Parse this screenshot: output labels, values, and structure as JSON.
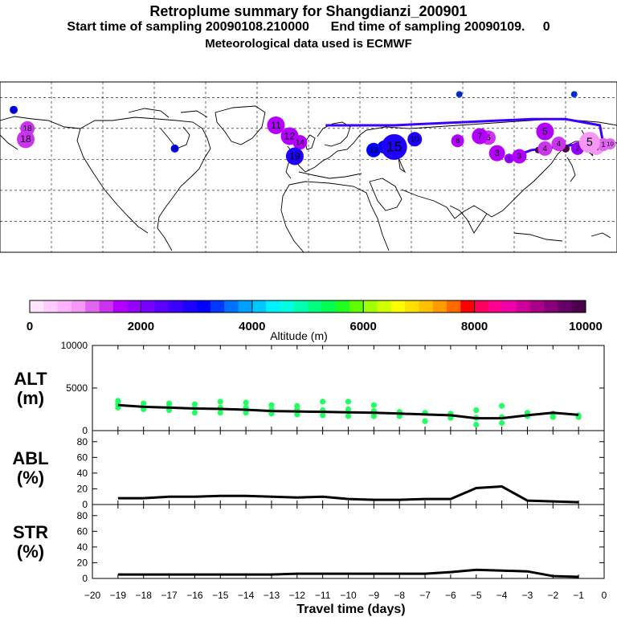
{
  "header": {
    "title": "Retroplume summary for Shangdianzi_200901",
    "subtitle_start": "Start time of sampling 20090108.210000",
    "subtitle_end": "End time of sampling 20090109.",
    "subtitle_end_value": "0",
    "met_data": "Meteorological data used is ECMWF"
  },
  "colorbar": {
    "colors": [
      "#ffe6ff",
      "#ffccff",
      "#ffb3ff",
      "#f699f6",
      "#e066f0",
      "#cc33ee",
      "#b400ff",
      "#9600ff",
      "#7800ff",
      "#5a00ff",
      "#3c00ff",
      "#1e00ff",
      "#0000ff",
      "#0038ff",
      "#0070ff",
      "#00a0ff",
      "#00c8ff",
      "#00f0ff",
      "#00ffe0",
      "#00ffb0",
      "#00ff80",
      "#00ff50",
      "#20ff20",
      "#60ff00",
      "#a0ff00",
      "#d0ff00",
      "#ffff00",
      "#ffe000",
      "#ffc000",
      "#ff9a00",
      "#ff6a00",
      "#ff0000",
      "#ff0060",
      "#ff0090",
      "#ee00aa",
      "#cc0099",
      "#aa0088",
      "#880077",
      "#660066",
      "#4a004a"
    ],
    "tick_labels": [
      "0",
      "2000",
      "4000",
      "6000",
      "8000",
      "10000"
    ],
    "label": "Altitude (m)"
  },
  "map": {
    "plume_points": [
      {
        "lon": 117.1,
        "lat": 40.6,
        "day": "1",
        "alt": 1900,
        "size": 6
      },
      {
        "lon": 134,
        "lat": 46,
        "day": "1",
        "alt": 9800,
        "size": 4
      },
      {
        "lon": 150,
        "lat": 47,
        "day": "1",
        "alt": 9800,
        "size": 5
      },
      {
        "lon": 168,
        "lat": 48,
        "day": "1",
        "alt": 800,
        "size": 10
      },
      {
        "lon": 172,
        "lat": 49.5,
        "day": "1",
        "alt": 1000,
        "size": 8
      },
      {
        "lon": 176,
        "lat": 50,
        "day": "10",
        "alt": 1000,
        "size": 7
      },
      {
        "lon": 157,
        "lat": 47,
        "day": "2",
        "alt": 1900,
        "size": 8
      },
      {
        "lon": 163,
        "lat": 48,
        "day": "2",
        "alt": 1700,
        "size": 7
      },
      {
        "lon": 110,
        "lat": 44,
        "day": "3",
        "alt": 1600,
        "size": 10
      },
      {
        "lon": 123,
        "lat": 42,
        "day": "3",
        "alt": 1600,
        "size": 9
      },
      {
        "lon": 138,
        "lat": 47,
        "day": "4",
        "alt": 1400,
        "size": 9
      },
      {
        "lon": 146,
        "lat": 50,
        "day": "4",
        "alt": 1300,
        "size": 9
      },
      {
        "lon": 138,
        "lat": 58,
        "day": "5",
        "alt": 1500,
        "size": 11
      },
      {
        "lon": 164,
        "lat": 51,
        "day": "5",
        "alt": 900,
        "size": 13
      },
      {
        "lon": 105,
        "lat": 54,
        "day": "6",
        "alt": 1400,
        "size": 9
      },
      {
        "lon": 100,
        "lat": 55,
        "day": "7",
        "alt": 1600,
        "size": 10
      },
      {
        "lon": 87,
        "lat": 52,
        "day": "8",
        "alt": 1500,
        "size": 8
      },
      {
        "lon": 62,
        "lat": 53,
        "day": "10",
        "alt": 2800,
        "size": 9
      },
      {
        "lon": 44,
        "lat": 48,
        "day": "11",
        "alt": 3000,
        "size": 8
      },
      {
        "lon": 38,
        "lat": 46,
        "day": "13",
        "alt": 3100,
        "size": 9
      },
      {
        "lon": 50,
        "lat": 48,
        "day": "15",
        "alt": 2800,
        "size": 16
      },
      {
        "lon": -11,
        "lat": 55,
        "day": "12",
        "alt": 1500,
        "size": 11
      },
      {
        "lon": -5,
        "lat": 51,
        "day": "14",
        "alt": 1700,
        "size": 9
      },
      {
        "lon": -8,
        "lat": 42,
        "day": "19",
        "alt": 2800,
        "size": 11
      },
      {
        "lon": -19,
        "lat": 62,
        "day": "11",
        "alt": 1500,
        "size": 11
      },
      {
        "lon": -78,
        "lat": 47,
        "day": "19",
        "alt": 3000,
        "size": 5
      },
      {
        "lon": -164,
        "lat": 60,
        "day": "18",
        "alt": 1300,
        "size": 9
      },
      {
        "lon": -165,
        "lat": 53,
        "day": "18",
        "alt": 1300,
        "size": 11
      },
      {
        "lon": -172,
        "lat": 72,
        "day": "12",
        "alt": 3200,
        "size": 5
      },
      {
        "lon": 88,
        "lat": 82,
        "day": "16",
        "alt": 3400,
        "size": 4
      },
      {
        "lon": 155,
        "lat": 82,
        "day": "17",
        "alt": 3400,
        "size": 4
      }
    ],
    "track": [
      [
        117.1,
        40.6
      ],
      [
        130,
        46
      ],
      [
        145,
        48
      ],
      [
        160,
        50
      ],
      [
        172,
        50
      ],
      [
        170,
        62
      ],
      [
        150,
        66
      ],
      [
        130,
        66
      ],
      [
        110,
        65
      ],
      [
        90,
        64
      ],
      [
        70,
        63
      ],
      [
        50,
        62
      ],
      [
        30,
        62
      ],
      [
        10,
        62
      ]
    ]
  },
  "chart_data": [
    {
      "type": "line",
      "panel": "ALT",
      "ylabel_line1": "ALT",
      "ylabel_line2": "(m)",
      "ylim": [
        0,
        10000
      ],
      "yticks": [
        "0",
        "5000",
        "10000"
      ],
      "x": [
        -19,
        -18,
        -17,
        -16,
        -15,
        -14,
        -13,
        -12,
        -11,
        -10,
        -9,
        -8,
        -7,
        -6,
        -5,
        -4,
        -3,
        -2,
        -1
      ],
      "series": [
        {
          "name": "mean altitude",
          "values": [
            3000,
            2800,
            2700,
            2600,
            2550,
            2450,
            2300,
            2250,
            2200,
            2150,
            2100,
            2000,
            1900,
            1800,
            1450,
            1450,
            1800,
            2100,
            1850
          ]
        },
        {
          "name": "cluster altitudes",
          "scatter": [
            [
              -19,
              3100
            ],
            [
              -19,
              3500
            ],
            [
              -19,
              2700
            ],
            [
              -18,
              2800
            ],
            [
              -18,
              3200
            ],
            [
              -18,
              2500
            ],
            [
              -17,
              2800
            ],
            [
              -17,
              3200
            ],
            [
              -17,
              2400
            ],
            [
              -16,
              2700
            ],
            [
              -16,
              3100
            ],
            [
              -16,
              2100
            ],
            [
              -15,
              2700
            ],
            [
              -15,
              3400
            ],
            [
              -15,
              2100
            ],
            [
              -14,
              2700
            ],
            [
              -14,
              3300
            ],
            [
              -14,
              2100
            ],
            [
              -13,
              2500
            ],
            [
              -13,
              3000
            ],
            [
              -13,
              2000
            ],
            [
              -12,
              2500
            ],
            [
              -12,
              2900
            ],
            [
              -12,
              1900
            ],
            [
              -11,
              2400
            ],
            [
              -11,
              3400
            ],
            [
              -11,
              1800
            ],
            [
              -10,
              2500
            ],
            [
              -10,
              3400
            ],
            [
              -10,
              1700
            ],
            [
              -9,
              2300
            ],
            [
              -9,
              3000
            ],
            [
              -9,
              1700
            ],
            [
              -8,
              2200
            ],
            [
              -8,
              1700
            ],
            [
              -7,
              2100
            ],
            [
              -7,
              1100
            ],
            [
              -6,
              2000
            ],
            [
              -6,
              1500
            ],
            [
              -5,
              1500
            ],
            [
              -5,
              700
            ],
            [
              -5,
              2400
            ],
            [
              -4,
              1600
            ],
            [
              -4,
              2900
            ],
            [
              -4,
              900
            ],
            [
              -3,
              1700
            ],
            [
              -3,
              2100
            ],
            [
              -2,
              2000
            ],
            [
              -2,
              1600
            ],
            [
              -1,
              1800
            ],
            [
              -1,
              1600
            ]
          ]
        }
      ]
    },
    {
      "type": "line",
      "panel": "ABL",
      "ylabel_line1": "ABL",
      "ylabel_line2": "(%)",
      "ylim": [
        0,
        90
      ],
      "yticks": [
        "0",
        "20",
        "40",
        "60",
        "80"
      ],
      "x": [
        -19,
        -18,
        -17,
        -16,
        -15,
        -14,
        -13,
        -12,
        -11,
        -10,
        -9,
        -8,
        -7,
        -6,
        -5,
        -4,
        -3,
        -2,
        -1
      ],
      "series": [
        {
          "name": "ABL fraction",
          "values": [
            8,
            8,
            10,
            10,
            11,
            11,
            10,
            9,
            10,
            7,
            6,
            6,
            7,
            7,
            21,
            23,
            5,
            4,
            3
          ]
        }
      ]
    },
    {
      "type": "line",
      "panel": "STR",
      "ylabel_line1": "STR",
      "ylabel_line2": "(%)",
      "ylim": [
        0,
        90
      ],
      "yticks": [
        "0",
        "20",
        "40",
        "60",
        "80"
      ],
      "x": [
        -19,
        -18,
        -17,
        -16,
        -15,
        -14,
        -13,
        -12,
        -11,
        -10,
        -9,
        -8,
        -7,
        -6,
        -5,
        -4,
        -3,
        -2,
        -1
      ],
      "series": [
        {
          "name": "STR fraction",
          "values": [
            5,
            5,
            5,
            5,
            5,
            5,
            5,
            6,
            6,
            6,
            6,
            6,
            6,
            8,
            11,
            10,
            9,
            3,
            2
          ]
        }
      ]
    }
  ],
  "xaxis": {
    "tick_labels": [
      "−20",
      "−19",
      "−18",
      "−17",
      "−16",
      "−15",
      "−14",
      "−13",
      "−12",
      "−11",
      "−10",
      "−9",
      "−8",
      "−7",
      "−6",
      "−5",
      "−4",
      "−3",
      "−2",
      "−1",
      "0"
    ],
    "label": "Travel time (days)"
  },
  "style": {
    "plume_point_color": "#3c00ff",
    "alt_scatter_color": "#20ff60",
    "line_color": "#000000"
  }
}
